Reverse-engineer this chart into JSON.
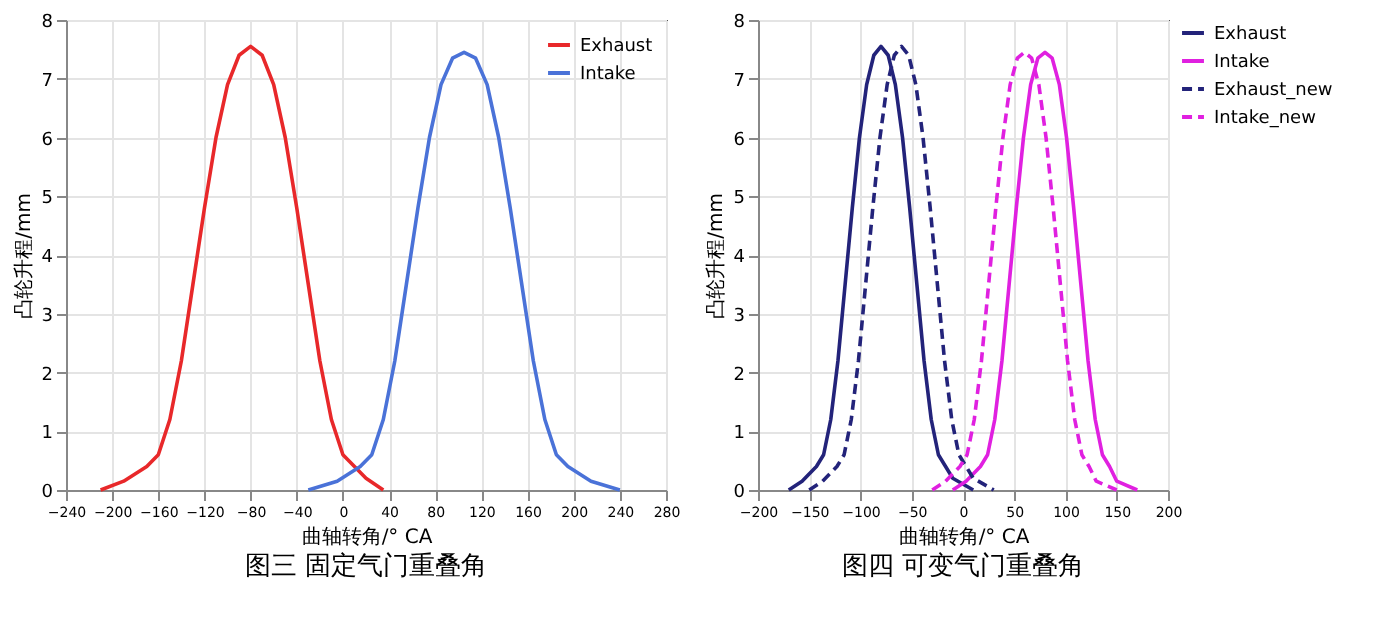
{
  "chart_data": [
    {
      "type": "line",
      "title": "图三  固定气门重叠角",
      "xlabel": "曲轴转角/° CA",
      "ylabel": "凸轮升程/mm",
      "xlim": [
        -240,
        280
      ],
      "xticks": [
        -240,
        -200,
        -160,
        -120,
        -80,
        -40,
        0,
        40,
        80,
        120,
        160,
        200,
        240,
        280
      ],
      "ylim": [
        0,
        8
      ],
      "yticks": [
        0,
        1,
        2,
        3,
        4,
        5,
        6,
        7,
        8
      ],
      "grid": true,
      "legend": "top right",
      "marker": "none",
      "series": [
        {
          "name": "Exhaust",
          "color": "#e8282a",
          "line_style": "solid",
          "x": [
            -210,
            -190,
            -170,
            -160,
            -150,
            -140,
            -130,
            -120,
            -110,
            -100,
            -90,
            -80,
            -70,
            -60,
            -50,
            -40,
            -30,
            -20,
            -10,
            0,
            10,
            20,
            35
          ],
          "values": [
            0,
            0.15,
            0.4,
            0.6,
            1.2,
            2.2,
            3.5,
            4.8,
            6.0,
            6.9,
            7.4,
            7.55,
            7.4,
            6.9,
            6.0,
            4.8,
            3.5,
            2.2,
            1.2,
            0.6,
            0.4,
            0.2,
            0
          ]
        },
        {
          "name": "Intake",
          "color": "#4a72d8",
          "line_style": "solid",
          "x": [
            -30,
            -5,
            15,
            25,
            35,
            45,
            55,
            65,
            75,
            85,
            95,
            105,
            115,
            125,
            135,
            145,
            155,
            165,
            175,
            185,
            195,
            215,
            240
          ],
          "values": [
            0,
            0.15,
            0.4,
            0.6,
            1.2,
            2.2,
            3.5,
            4.8,
            6.0,
            6.9,
            7.35,
            7.45,
            7.35,
            6.9,
            6.0,
            4.8,
            3.5,
            2.2,
            1.2,
            0.6,
            0.4,
            0.15,
            0
          ]
        }
      ]
    },
    {
      "type": "line",
      "title": "图四  可变气门重叠角",
      "xlabel": "曲轴转角/° CA",
      "ylabel": "凸轮升程/mm",
      "xlim": [
        -200,
        200
      ],
      "xticks": [
        -200,
        -150,
        -100,
        -50,
        0,
        50,
        100,
        150,
        200
      ],
      "ylim": [
        0,
        8
      ],
      "yticks": [
        0,
        1,
        2,
        3,
        4,
        5,
        6,
        7,
        8
      ],
      "grid": true,
      "legend": "right",
      "marker": "none",
      "series": [
        {
          "name": "Exhaust",
          "color": "#23237a",
          "line_style": "solid",
          "x": [
            -170,
            -157,
            -143,
            -136,
            -129,
            -122,
            -115,
            -108,
            -101,
            -94,
            -87,
            -80,
            -73,
            -66,
            -59,
            -52,
            -45,
            -38,
            -31,
            -24,
            -17,
            -10,
            10
          ],
          "values": [
            0,
            0.15,
            0.4,
            0.6,
            1.2,
            2.2,
            3.5,
            4.8,
            6.0,
            6.9,
            7.4,
            7.55,
            7.4,
            6.9,
            6.0,
            4.8,
            3.5,
            2.2,
            1.2,
            0.6,
            0.4,
            0.2,
            0
          ]
        },
        {
          "name": "Intake",
          "color": "#e020e0",
          "line_style": "solid",
          "x": [
            -10,
            3,
            17,
            24,
            31,
            38,
            45,
            52,
            59,
            66,
            73,
            80,
            87,
            94,
            101,
            108,
            115,
            122,
            129,
            136,
            143,
            150,
            170
          ],
          "values": [
            0,
            0.15,
            0.4,
            0.6,
            1.2,
            2.2,
            3.5,
            4.8,
            6.0,
            6.9,
            7.35,
            7.45,
            7.35,
            6.9,
            6.0,
            4.8,
            3.5,
            2.2,
            1.2,
            0.6,
            0.4,
            0.15,
            0
          ]
        },
        {
          "name": "Exhaust_new",
          "color": "#23237a",
          "line_style": "dashed",
          "x": [
            -150,
            -137,
            -123,
            -116,
            -109,
            -102,
            -95,
            -88,
            -81,
            -74,
            -67,
            -60,
            -53,
            -46,
            -39,
            -32,
            -25,
            -18,
            -11,
            -4,
            3,
            10,
            30
          ],
          "values": [
            0,
            0.15,
            0.4,
            0.6,
            1.2,
            2.2,
            3.5,
            4.8,
            6.0,
            6.9,
            7.4,
            7.55,
            7.4,
            6.9,
            6.0,
            4.8,
            3.5,
            2.2,
            1.2,
            0.6,
            0.4,
            0.2,
            0
          ]
        },
        {
          "name": "Intake_new",
          "color": "#e020e0",
          "line_style": "dashed",
          "x": [
            -30,
            -17,
            -3,
            4,
            11,
            18,
            25,
            32,
            39,
            46,
            53,
            60,
            67,
            74,
            81,
            88,
            95,
            102,
            109,
            116,
            123,
            130,
            150
          ],
          "values": [
            0,
            0.15,
            0.4,
            0.6,
            1.2,
            2.2,
            3.5,
            4.8,
            6.0,
            6.9,
            7.35,
            7.45,
            7.35,
            6.9,
            6.0,
            4.8,
            3.5,
            2.2,
            1.2,
            0.6,
            0.4,
            0.15,
            0
          ]
        }
      ]
    }
  ]
}
